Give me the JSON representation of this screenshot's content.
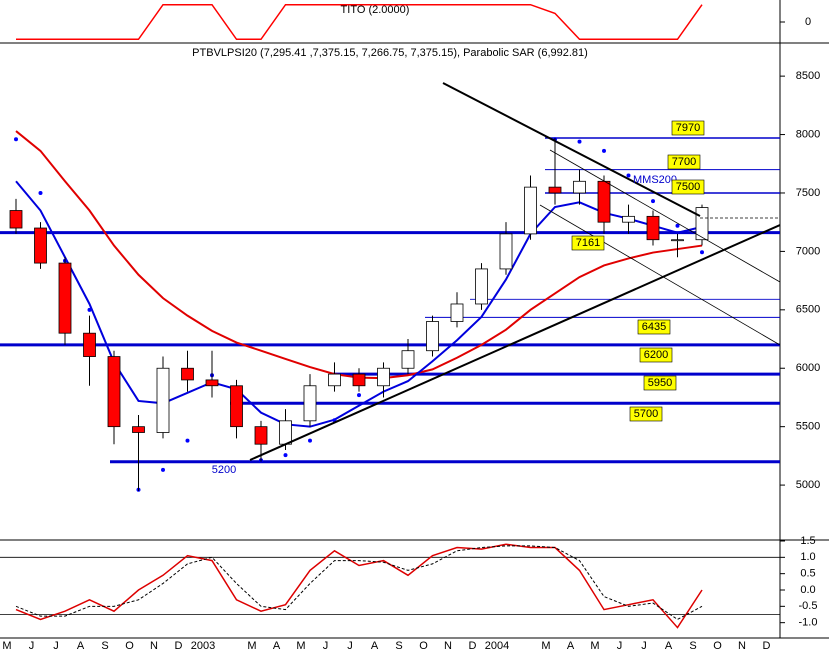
{
  "chart_data": [
    {
      "type": "line",
      "title": "TITO (2.0000)",
      "color": "#ff0000",
      "values": [
        -1,
        -1,
        -1,
        -1,
        -1,
        -1,
        1,
        1,
        1,
        -1,
        -1,
        1,
        1,
        1,
        1,
        1,
        1,
        1,
        1,
        1,
        1,
        1,
        0.5,
        -1,
        -1,
        -1,
        -1,
        -1,
        1,
        null,
        null,
        null
      ],
      "ylim": [
        -1.1,
        1.1
      ],
      "yticks": [
        0
      ]
    },
    {
      "type": "candlestick",
      "title": "PTBVLPSI20 (7,295.41 ,7,375.15, 7,266.75, 7,375.15), Parabolic SAR (6,992.81)",
      "categories": [
        "M",
        "J",
        "J",
        "A",
        "S",
        "O",
        "N",
        "D",
        "2003",
        null,
        "M",
        "A",
        "M",
        "J",
        "J",
        "A",
        "S",
        "O",
        "N",
        "D",
        "2004",
        null,
        "M",
        "A",
        "M",
        "J",
        "J",
        "A",
        "S",
        "O",
        "N",
        "D"
      ],
      "open": [
        7350,
        7200,
        6900,
        6300,
        6100,
        5500,
        5450,
        6000,
        5900,
        5850,
        5500,
        5350,
        5550,
        5850,
        5950,
        5850,
        6000,
        6150,
        6400,
        6550,
        6850,
        7150,
        7550,
        7500,
        7600,
        7250,
        7300,
        7100,
        7100,
        null,
        null,
        null
      ],
      "high": [
        7450,
        7250,
        6950,
        6450,
        6150,
        5600,
        6100,
        6150,
        6150,
        5900,
        5550,
        5650,
        5950,
        6050,
        6000,
        6050,
        6250,
        6450,
        6650,
        6900,
        7250,
        7650,
        7970,
        7700,
        7650,
        7400,
        7350,
        7150,
        7400,
        null,
        null,
        null
      ],
      "low": [
        7150,
        6850,
        6200,
        5850,
        5350,
        4950,
        5400,
        5800,
        5750,
        5400,
        5200,
        5300,
        5500,
        5800,
        5800,
        5750,
        5950,
        6100,
        6350,
        6500,
        6800,
        7100,
        7400,
        7400,
        7150,
        7150,
        7050,
        6950,
        7050,
        null,
        null,
        null
      ],
      "close": [
        7200,
        6900,
        6300,
        6100,
        5500,
        5450,
        6000,
        5900,
        5850,
        5500,
        5350,
        5550,
        5850,
        5950,
        5850,
        6000,
        6150,
        6400,
        6550,
        6850,
        7150,
        7550,
        7500,
        7600,
        7250,
        7300,
        7100,
        7100,
        7375,
        null,
        null,
        null
      ],
      "up_color": "#ffffff",
      "down_color": "#ff0000",
      "series": [
        {
          "color": "#e00000",
          "values": [
            8030,
            7860,
            7600,
            7350,
            7050,
            6800,
            6600,
            6450,
            6320,
            6220,
            6150,
            6080,
            6010,
            5950,
            5920,
            5915,
            5940,
            5990,
            6090,
            6200,
            6330,
            6500,
            6640,
            6780,
            6880,
            6940,
            6990,
            7020,
            7050,
            null,
            null,
            null
          ]
        },
        {
          "color": "#0000dd",
          "values": [
            7600,
            7350,
            6950,
            6550,
            6050,
            5720,
            5700,
            5790,
            5880,
            5820,
            5620,
            5520,
            5500,
            5560,
            5680,
            5800,
            5890,
            6060,
            6240,
            6440,
            6760,
            7150,
            7380,
            7420,
            7330,
            7280,
            7220,
            7160,
            7210,
            null,
            null,
            null
          ]
        },
        {
          "color": "#0000ff",
          "style": "dots",
          "values": [
            7960,
            7500,
            6920,
            6500,
            5730,
            4960,
            5130,
            5380,
            5940,
            5700,
            5213,
            5256,
            5380,
            5555,
            5770,
            5940,
            6070,
            6240,
            6450,
            6710,
            6920,
            7180,
            7960,
            7940,
            7860,
            7650,
            7430,
            7220,
            6993,
            null,
            null,
            null
          ]
        }
      ],
      "annotation": "MMS200",
      "levels": [
        7970,
        7700,
        7500,
        7161,
        6435,
        6200,
        5950,
        5700,
        5200
      ],
      "level_color": "#0000cc",
      "label_box_color": "#ffff00",
      "guide_lines": [
        6590
      ],
      "ylim": [
        4530,
        8775
      ],
      "yticks": [
        5000,
        5500,
        6000,
        6500,
        7000,
        7500,
        8000,
        8500
      ]
    },
    {
      "type": "line",
      "series": [
        {
          "color": "#dd0000",
          "values": [
            -0.6,
            -0.9,
            -0.65,
            -0.3,
            -0.65,
            0,
            0.45,
            1.05,
            0.9,
            -0.3,
            -0.65,
            -0.45,
            0.6,
            1.2,
            0.75,
            0.9,
            0.45,
            1.05,
            1.3,
            1.25,
            1.4,
            1.3,
            1.3,
            0.6,
            -0.6,
            -0.45,
            -0.3,
            -1.15,
            0,
            null,
            null,
            null
          ]
        },
        {
          "color": "#000000",
          "style": "dashed",
          "values": [
            -0.5,
            -0.8,
            -0.8,
            -0.5,
            -0.5,
            -0.3,
            0.2,
            0.8,
            1.0,
            0.2,
            -0.5,
            -0.6,
            0.2,
            0.9,
            0.9,
            0.85,
            0.6,
            0.8,
            1.2,
            1.3,
            1.35,
            1.35,
            1.3,
            0.9,
            -0.2,
            -0.5,
            -0.4,
            -0.9,
            -0.5,
            null,
            null,
            null
          ]
        }
      ],
      "levels": [
        1,
        -0.75
      ],
      "ylim": [
        -1.5,
        1.5
      ],
      "yticks": [
        1.5,
        {
          "value": 1,
          "label": "1.0"
        },
        0.5,
        {
          "value": 0,
          "label": "0.0"
        },
        -0.5,
        {
          "value": -1,
          "label": "-1.0"
        }
      ]
    }
  ]
}
